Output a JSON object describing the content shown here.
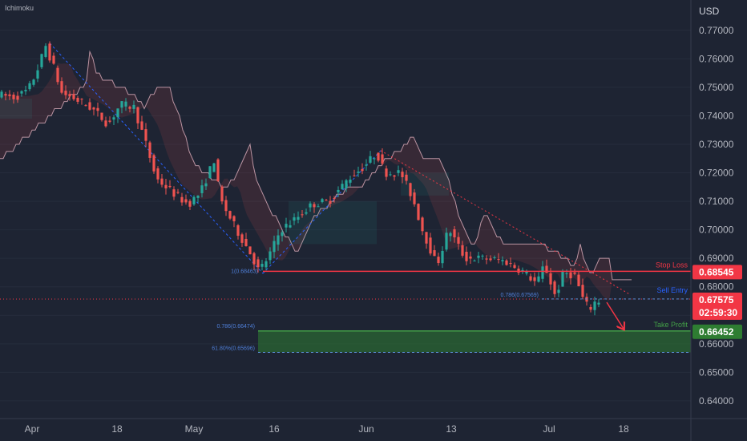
{
  "indicator_label": "Ichimoku",
  "chart_data": {
    "type": "candlestick",
    "currency_label": "USD",
    "ylim": [
      0.635,
      0.7785
    ],
    "y_ticks": [
      "0.77000",
      "0.76000",
      "0.75000",
      "0.74000",
      "0.73000",
      "0.72000",
      "0.71000",
      "0.70000",
      "0.69000",
      "0.68000",
      "0.67000",
      "0.66000",
      "0.65000",
      "0.64000"
    ],
    "x_ticks": [
      "Apr",
      "18",
      "May",
      "16",
      "Jun",
      "13",
      "Jul",
      "18"
    ],
    "levels": {
      "stop_loss": {
        "label": "Stop Loss",
        "value": 0.68545,
        "value_label": "0.68545",
        "color": "#f23645"
      },
      "sell_entry": {
        "label": "Sell Entry",
        "value": 0.67575,
        "color": "#2962ff"
      },
      "take_profit": {
        "label": "Take Profit",
        "value": 0.66452,
        "value_label": "0.66452",
        "color": "#2e7d32"
      },
      "current_price": {
        "value": 0.67575,
        "value_label": "0.67575",
        "countdown": "02:59:30",
        "color": "#f23645"
      }
    },
    "fib_annotations": [
      {
        "label": "1(0.68463)",
        "value": 0.68463
      },
      {
        "label": "0.786(0.67569)",
        "value": 0.67569
      },
      {
        "label": "0.786(0.66474)",
        "value": 0.66474
      },
      {
        "label": "61.80%(0.65696)",
        "value": 0.65696
      }
    ],
    "colors": {
      "bull": "#26a69a",
      "bear": "#ef5350",
      "cloud_bear": "#ef5350",
      "cloud_bull": "#26a69a",
      "zone": "#2e7d32"
    }
  }
}
